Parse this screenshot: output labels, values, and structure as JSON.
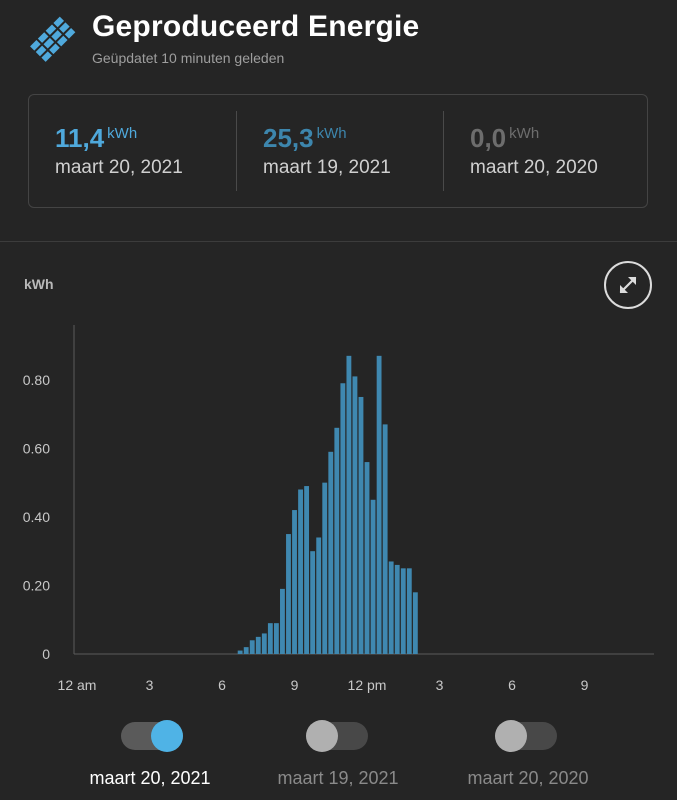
{
  "header": {
    "title": "Geproduceerd Energie",
    "subtitle": "Geüpdatet 10 minuten geleden",
    "icon": "solar-panel-icon"
  },
  "stats": [
    {
      "value": "11,4",
      "unit": "kWh",
      "date": "maart 20, 2021",
      "color": "#4fa9dc"
    },
    {
      "value": "25,3",
      "unit": "kWh",
      "date": "maart 19, 2021",
      "color": "#3d86ad"
    },
    {
      "value": "0,0",
      "unit": "kWh",
      "date": "maart 20, 2020",
      "color": "#6d6d6d"
    }
  ],
  "expand": {
    "icon": "expand-icon"
  },
  "chart_data": {
    "type": "bar",
    "ylabel": "kWh",
    "ylim": [
      0,
      0.96
    ],
    "yticks": [
      "0",
      "0.20",
      "0.40",
      "0.60",
      "0.80"
    ],
    "xticks": [
      "12 am",
      "3",
      "6",
      "9",
      "12 pm",
      "3",
      "6",
      "9"
    ],
    "bar_color": "#3f88b0",
    "interval_minutes": 15,
    "start_time": "06:45",
    "values": [
      0.01,
      0.02,
      0.04,
      0.05,
      0.06,
      0.09,
      0.09,
      0.19,
      0.35,
      0.42,
      0.48,
      0.49,
      0.3,
      0.34,
      0.5,
      0.59,
      0.66,
      0.79,
      0.87,
      0.81,
      0.75,
      0.56,
      0.45,
      0.87,
      0.67,
      0.27,
      0.26,
      0.25,
      0.25,
      0.18
    ]
  },
  "toggles": [
    {
      "label": "maart 20, 2021",
      "on": true
    },
    {
      "label": "maart 19, 2021",
      "on": false
    },
    {
      "label": "maart 20, 2020",
      "on": false
    }
  ],
  "colors": {
    "background": "#252525",
    "accent": "#4fa9dc",
    "text_muted": "#9e9e9e"
  }
}
